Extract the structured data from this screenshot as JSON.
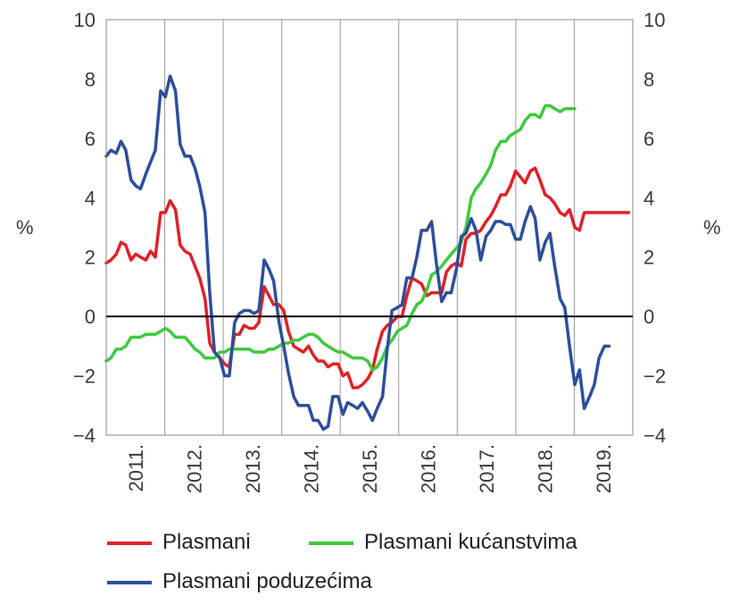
{
  "chart_data": {
    "type": "line",
    "title": "",
    "xlabel": "",
    "ylabel_left": "%",
    "ylabel_right": "%",
    "ylim": [
      -4,
      10
    ],
    "yticks": [
      -4,
      -2,
      0,
      2,
      4,
      6,
      8,
      10
    ],
    "ytick_labels": [
      "−4",
      "−2",
      "0",
      "2",
      "4",
      "6",
      "8",
      "10"
    ],
    "xlim": [
      2011.0,
      2019.9
    ],
    "x_categories": [
      "2011.",
      "2012.",
      "2013.",
      "2014.",
      "2015.",
      "2016.",
      "2017.",
      "2018.",
      "2019."
    ],
    "grid": "vertical lines between years",
    "zero_line": true,
    "legend_position": "bottom",
    "series": [
      {
        "name": "Plasmani",
        "color": "#e02127",
        "x": [
          2011.0,
          2011.08,
          2011.17,
          2011.25,
          2011.33,
          2011.42,
          2011.5,
          2011.58,
          2011.67,
          2011.75,
          2011.83,
          2011.92,
          2012.0,
          2012.08,
          2012.17,
          2012.25,
          2012.33,
          2012.42,
          2012.5,
          2012.58,
          2012.67,
          2012.75,
          2012.83,
          2012.92,
          2013.0,
          2013.08,
          2013.17,
          2013.25,
          2013.33,
          2013.42,
          2013.5,
          2013.58,
          2013.67,
          2013.75,
          2013.83,
          2013.92,
          2014.0,
          2014.08,
          2014.17,
          2014.25,
          2014.33,
          2014.42,
          2014.5,
          2014.58,
          2014.67,
          2014.75,
          2014.83,
          2014.92,
          2015.0,
          2015.08,
          2015.17,
          2015.25,
          2015.33,
          2015.42,
          2015.5,
          2015.58,
          2015.67,
          2015.75,
          2015.83,
          2015.92,
          2016.0,
          2016.08,
          2016.17,
          2016.25,
          2016.33,
          2016.42,
          2016.5,
          2016.58,
          2016.67,
          2016.75,
          2016.83,
          2016.92,
          2017.0,
          2017.08,
          2017.17,
          2017.25,
          2017.33,
          2017.42,
          2017.5,
          2017.58,
          2017.67,
          2017.75,
          2017.83,
          2017.92,
          2018.0,
          2018.08,
          2018.17,
          2018.25,
          2018.33,
          2018.42,
          2018.5,
          2018.58,
          2018.67,
          2018.75,
          2018.83,
          2018.92,
          2019.0,
          2019.08,
          2019.17,
          2019.25,
          2019.33,
          2019.42,
          2019.5,
          2019.58,
          2019.67,
          2019.75,
          2019.83
        ],
        "y": [
          1.8,
          1.9,
          2.1,
          2.5,
          2.4,
          1.9,
          2.1,
          2.0,
          1.9,
          2.2,
          2.0,
          3.5,
          3.5,
          3.9,
          3.6,
          2.4,
          2.2,
          2.1,
          1.7,
          1.3,
          0.6,
          -0.9,
          -1.2,
          -1.4,
          -1.6,
          -1.7,
          -0.6,
          -0.6,
          -0.3,
          -0.4,
          -0.4,
          -0.2,
          1.0,
          0.7,
          0.4,
          0.4,
          0.2,
          -0.5,
          -1.0,
          -1.1,
          -1.2,
          -1.0,
          -1.3,
          -1.5,
          -1.5,
          -1.7,
          -1.6,
          -1.6,
          -2.0,
          -1.9,
          -2.4,
          -2.4,
          -2.3,
          -2.1,
          -1.8,
          -1.1,
          -0.5,
          -0.3,
          -0.2,
          0.0,
          0.0,
          0.7,
          1.3,
          1.2,
          1.1,
          0.7,
          0.8,
          0.8,
          0.8,
          1.5,
          1.7,
          1.8,
          1.7,
          2.6,
          2.8,
          2.8,
          2.9,
          3.2,
          3.4,
          3.7,
          4.1,
          4.1,
          4.4,
          4.9,
          4.7,
          4.5,
          4.9,
          5.0,
          4.6,
          4.1,
          4.0,
          3.8,
          3.5,
          3.4,
          3.6,
          3.0,
          2.9,
          3.5,
          3.5,
          3.5,
          3.5,
          3.5,
          3.5,
          3.5,
          3.5,
          3.5,
          3.5
        ]
      },
      {
        "name": "Plasmani kućanstvima",
        "color": "#3ec93e",
        "x": [
          2011.0,
          2011.08,
          2011.17,
          2011.25,
          2011.33,
          2011.42,
          2011.5,
          2011.58,
          2011.67,
          2011.75,
          2011.83,
          2011.92,
          2012.0,
          2012.08,
          2012.17,
          2012.25,
          2012.33,
          2012.42,
          2012.5,
          2012.58,
          2012.67,
          2012.75,
          2012.83,
          2012.92,
          2013.0,
          2013.08,
          2013.17,
          2013.25,
          2013.33,
          2013.42,
          2013.5,
          2013.58,
          2013.67,
          2013.75,
          2013.83,
          2013.92,
          2014.0,
          2014.08,
          2014.17,
          2014.25,
          2014.33,
          2014.42,
          2014.5,
          2014.58,
          2014.67,
          2014.75,
          2014.83,
          2014.92,
          2015.0,
          2015.08,
          2015.17,
          2015.25,
          2015.33,
          2015.42,
          2015.5,
          2015.58,
          2015.67,
          2015.75,
          2015.83,
          2015.92,
          2016.0,
          2016.08,
          2016.17,
          2016.25,
          2016.33,
          2016.42,
          2016.5,
          2016.58,
          2016.67,
          2016.75,
          2016.83,
          2016.92,
          2017.0,
          2017.08,
          2017.17,
          2017.25,
          2017.33,
          2017.42,
          2017.5,
          2017.58,
          2017.67,
          2017.75,
          2017.83,
          2017.92,
          2018.0,
          2018.08,
          2018.17,
          2018.25,
          2018.33,
          2018.42,
          2018.5,
          2018.58,
          2018.67,
          2018.75,
          2018.83,
          2018.92
        ],
        "y": [
          -1.5,
          -1.4,
          -1.1,
          -1.1,
          -1.0,
          -0.7,
          -0.7,
          -0.7,
          -0.6,
          -0.6,
          -0.6,
          -0.5,
          -0.4,
          -0.5,
          -0.7,
          -0.7,
          -0.7,
          -0.9,
          -1.1,
          -1.2,
          -1.4,
          -1.4,
          -1.4,
          -1.2,
          -1.2,
          -1.1,
          -1.1,
          -1.1,
          -1.1,
          -1.1,
          -1.2,
          -1.2,
          -1.2,
          -1.1,
          -1.1,
          -1.0,
          -0.9,
          -0.9,
          -0.8,
          -0.8,
          -0.7,
          -0.6,
          -0.6,
          -0.7,
          -0.9,
          -1.0,
          -1.1,
          -1.2,
          -1.2,
          -1.3,
          -1.4,
          -1.4,
          -1.4,
          -1.5,
          -1.8,
          -1.7,
          -1.4,
          -1.0,
          -0.8,
          -0.5,
          -0.4,
          -0.3,
          0.1,
          0.4,
          0.5,
          0.9,
          1.4,
          1.5,
          1.7,
          1.9,
          2.1,
          2.3,
          2.5,
          3.0,
          4.0,
          4.3,
          4.5,
          4.8,
          5.1,
          5.6,
          5.9,
          5.9,
          6.1,
          6.2,
          6.3,
          6.6,
          6.8,
          6.8,
          6.7,
          7.1,
          7.1,
          7.0,
          6.9,
          7.0,
          7.0,
          7.0
        ]
      },
      {
        "name": "Plasmani poduzećima",
        "color": "#2d4e9c",
        "x": [
          2011.0,
          2011.08,
          2011.17,
          2011.25,
          2011.33,
          2011.42,
          2011.5,
          2011.58,
          2011.67,
          2011.75,
          2011.83,
          2011.92,
          2012.0,
          2012.08,
          2012.17,
          2012.25,
          2012.33,
          2012.42,
          2012.5,
          2012.58,
          2012.67,
          2012.75,
          2012.83,
          2012.92,
          2013.0,
          2013.08,
          2013.17,
          2013.25,
          2013.33,
          2013.42,
          2013.5,
          2013.58,
          2013.67,
          2013.75,
          2013.83,
          2013.92,
          2014.0,
          2014.08,
          2014.17,
          2014.25,
          2014.33,
          2014.42,
          2014.5,
          2014.58,
          2014.67,
          2014.75,
          2014.83,
          2014.92,
          2015.0,
          2015.08,
          2015.17,
          2015.25,
          2015.33,
          2015.42,
          2015.5,
          2015.58,
          2015.67,
          2015.75,
          2015.83,
          2015.92,
          2016.0,
          2016.08,
          2016.17,
          2016.25,
          2016.33,
          2016.42,
          2016.5,
          2016.58,
          2016.67,
          2016.75,
          2016.83,
          2016.92,
          2017.0,
          2017.08,
          2017.17,
          2017.25,
          2017.33,
          2017.42,
          2017.5,
          2017.58,
          2017.67,
          2017.75,
          2017.83,
          2017.92,
          2018.0,
          2018.08,
          2018.17,
          2018.25,
          2018.33,
          2018.42,
          2018.5,
          2018.58,
          2018.67,
          2018.75,
          2018.83,
          2018.92,
          2019.0,
          2019.08,
          2019.17,
          2019.25,
          2019.33,
          2019.42,
          2019.5
        ],
        "y": [
          5.4,
          5.6,
          5.5,
          5.9,
          5.6,
          4.6,
          4.4,
          4.3,
          4.8,
          5.2,
          5.6,
          7.6,
          7.4,
          8.1,
          7.6,
          5.8,
          5.4,
          5.4,
          5.0,
          4.4,
          3.5,
          0.8,
          -1.2,
          -1.4,
          -2.0,
          -2.0,
          -0.2,
          0.1,
          0.2,
          0.2,
          0.1,
          0.2,
          1.9,
          1.6,
          1.2,
          -0.2,
          -1.0,
          -1.9,
          -2.7,
          -3.0,
          -3.0,
          -3.0,
          -3.5,
          -3.5,
          -3.8,
          -3.7,
          -2.7,
          -2.7,
          -3.3,
          -2.9,
          -3.0,
          -3.1,
          -2.9,
          -3.2,
          -3.5,
          -3.1,
          -2.7,
          -1.1,
          0.2,
          0.3,
          0.4,
          1.3,
          1.3,
          2.0,
          2.9,
          2.9,
          3.2,
          1.8,
          0.5,
          0.8,
          0.8,
          1.6,
          2.7,
          2.8,
          3.3,
          2.9,
          1.9,
          2.7,
          2.9,
          3.2,
          3.2,
          3.1,
          3.1,
          2.6,
          2.6,
          3.2,
          3.7,
          3.3,
          1.9,
          2.5,
          2.8,
          1.7,
          0.6,
          0.3,
          -1.0,
          -2.3,
          -1.8,
          -3.1,
          -2.7,
          -2.3,
          -1.4,
          -1.0,
          -1.0
        ]
      }
    ]
  }
}
